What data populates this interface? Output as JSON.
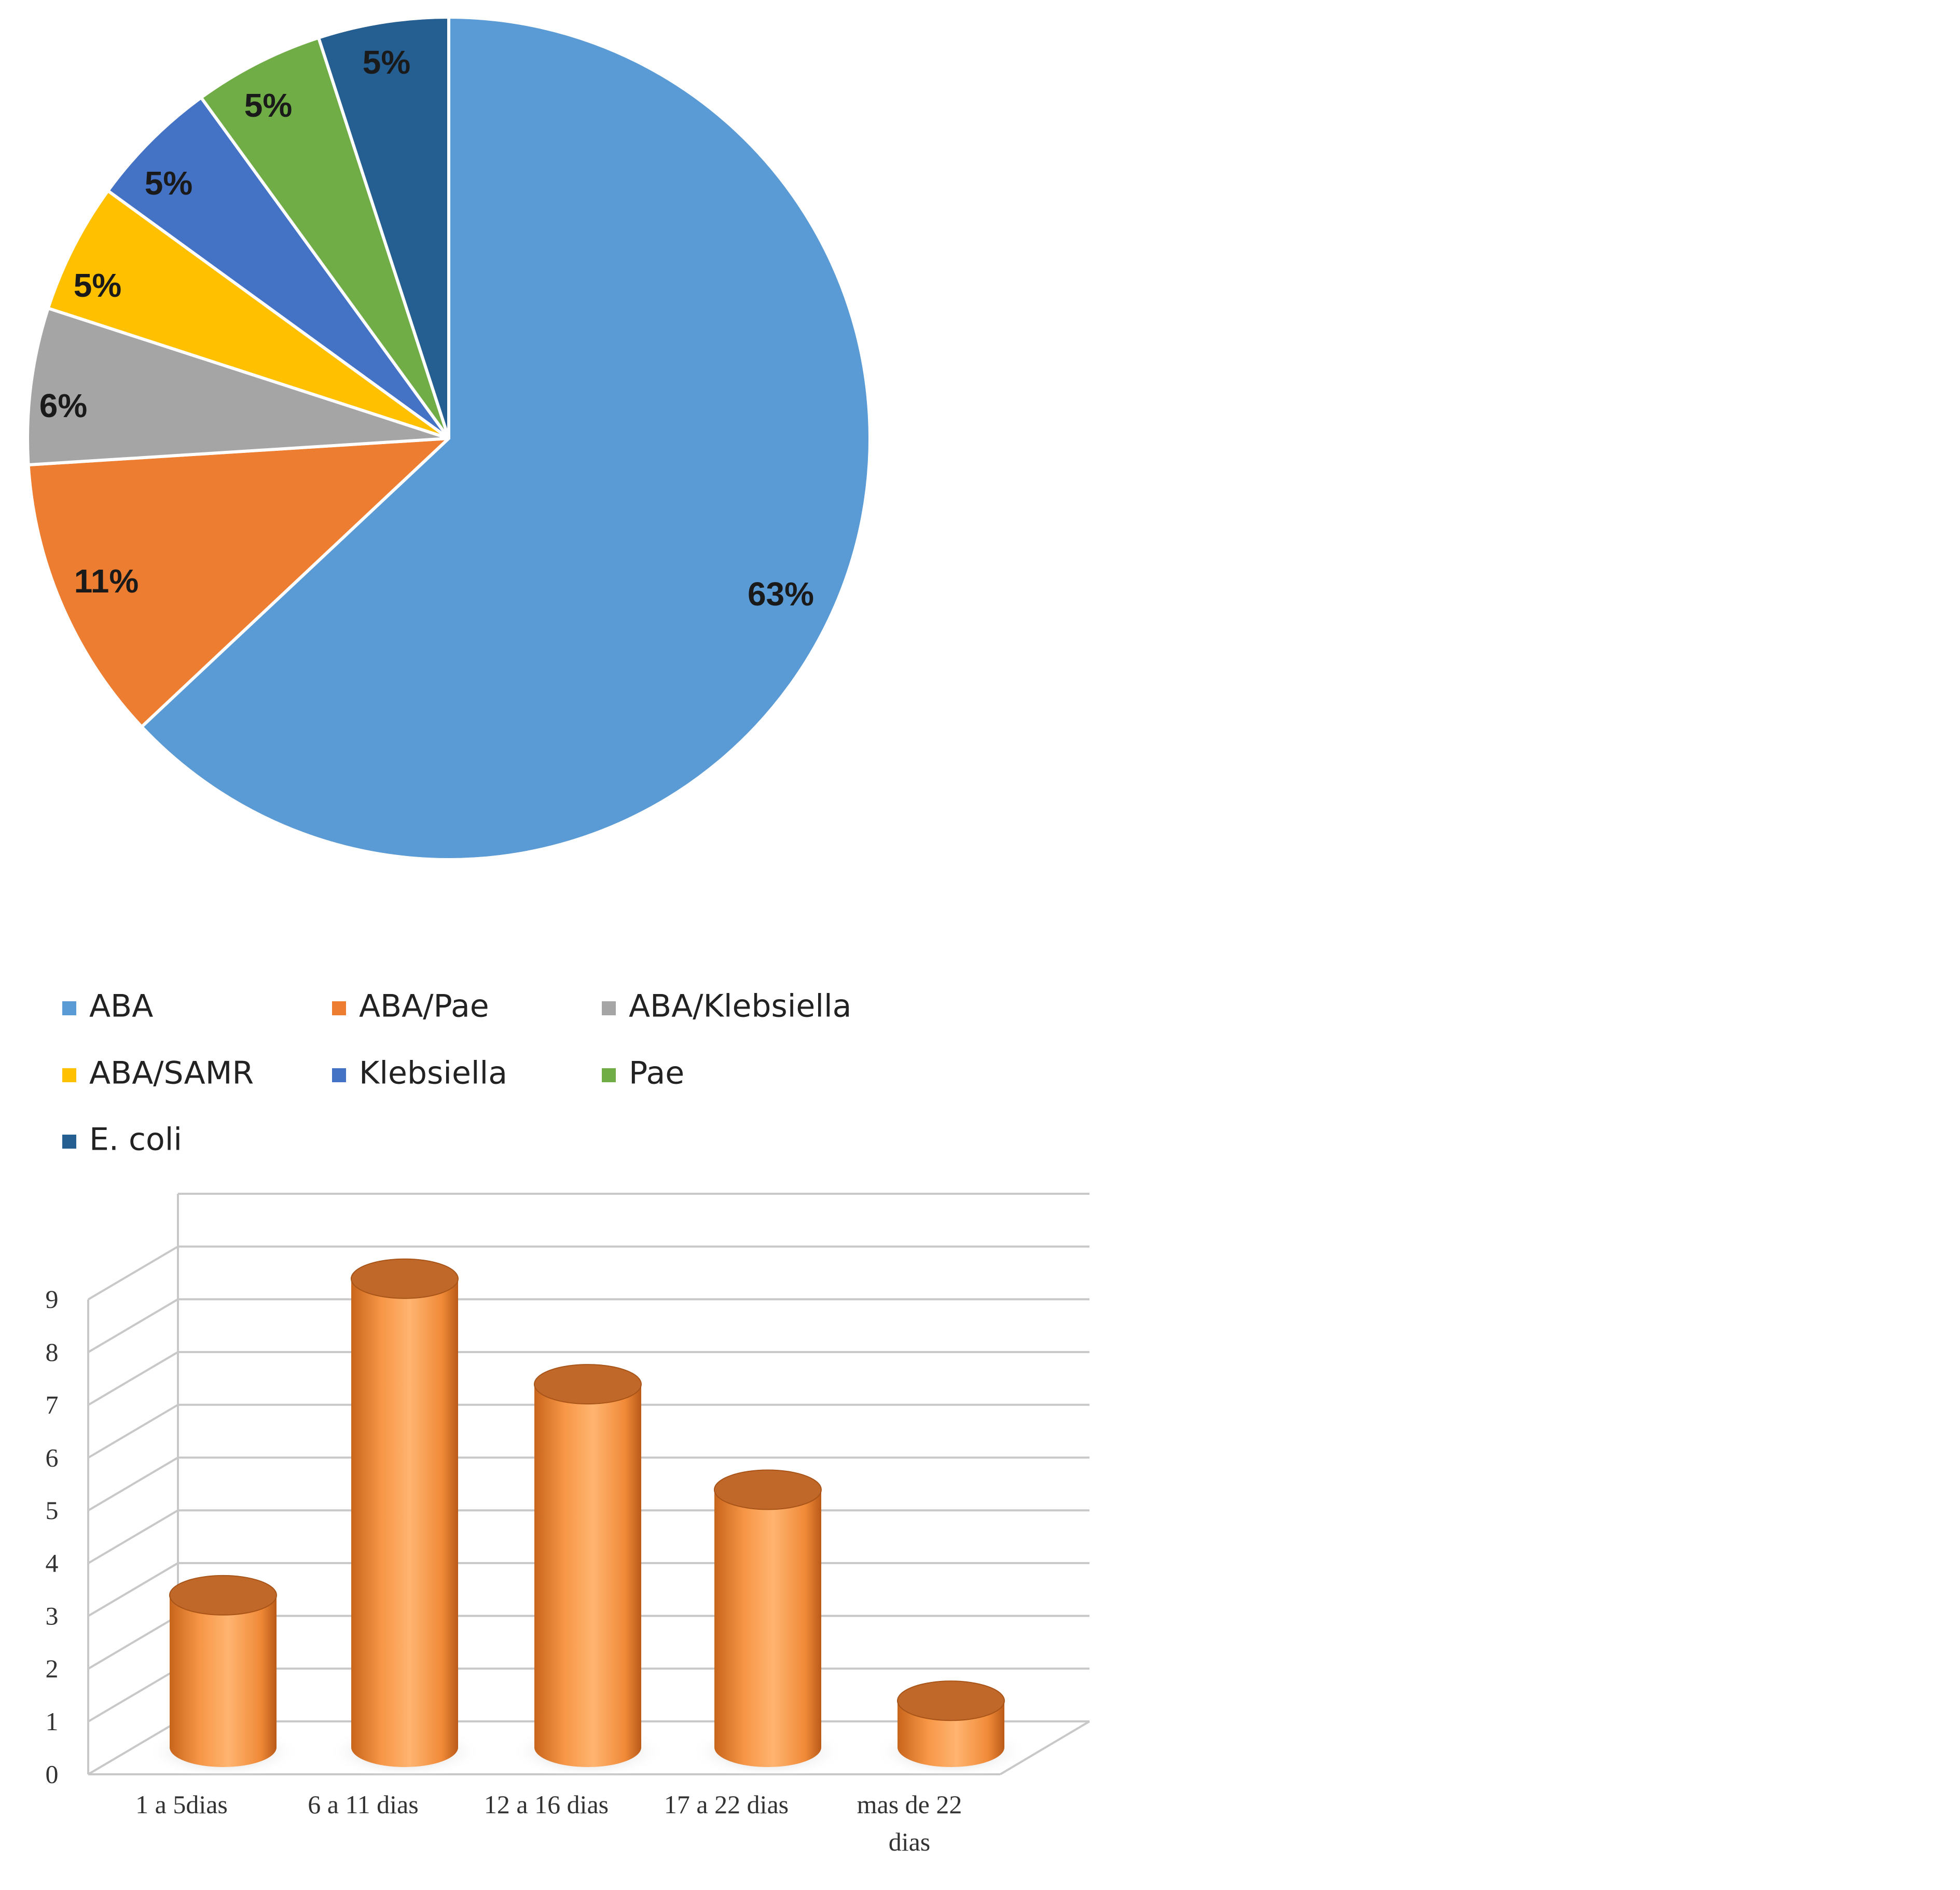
{
  "chart_data": [
    {
      "type": "pie",
      "title": "",
      "slices": [
        {
          "label": "ABA",
          "value": 63,
          "display": "63%",
          "color": "#5B9BD5"
        },
        {
          "label": "ABA/Pae",
          "value": 11,
          "display": "11%",
          "color": "#ED7D31"
        },
        {
          "label": "ABA/Klebsiella",
          "value": 6,
          "display": "6%",
          "color": "#A5A5A5"
        },
        {
          "label": "ABA/SAMR",
          "value": 5,
          "display": "5%",
          "color": "#FFC000"
        },
        {
          "label": "Klebsiella",
          "value": 5,
          "display": "5%",
          "color": "#4472C4"
        },
        {
          "label": "Pae",
          "value": 5,
          "display": "5%",
          "color": "#70AD47"
        },
        {
          "label": "E. coli",
          "value": 5,
          "display": "5%",
          "color": "#255E91"
        }
      ],
      "legend_position": "bottom"
    },
    {
      "type": "bar",
      "style": "3d-cylinder",
      "title": "",
      "xlabel": "",
      "ylabel": "",
      "categories": [
        "1 a 5dias",
        "6 a 11 dias",
        "12 a 16 dias",
        "17 a 22 dias",
        "mas de 22 dias"
      ],
      "values": [
        3,
        9,
        7,
        5,
        1
      ],
      "ylim": [
        0,
        9
      ],
      "yticks": [
        "0",
        "1",
        "2",
        "3",
        "4",
        "5",
        "6",
        "7",
        "8",
        "9"
      ],
      "grid": true,
      "color": "#F79646"
    }
  ]
}
